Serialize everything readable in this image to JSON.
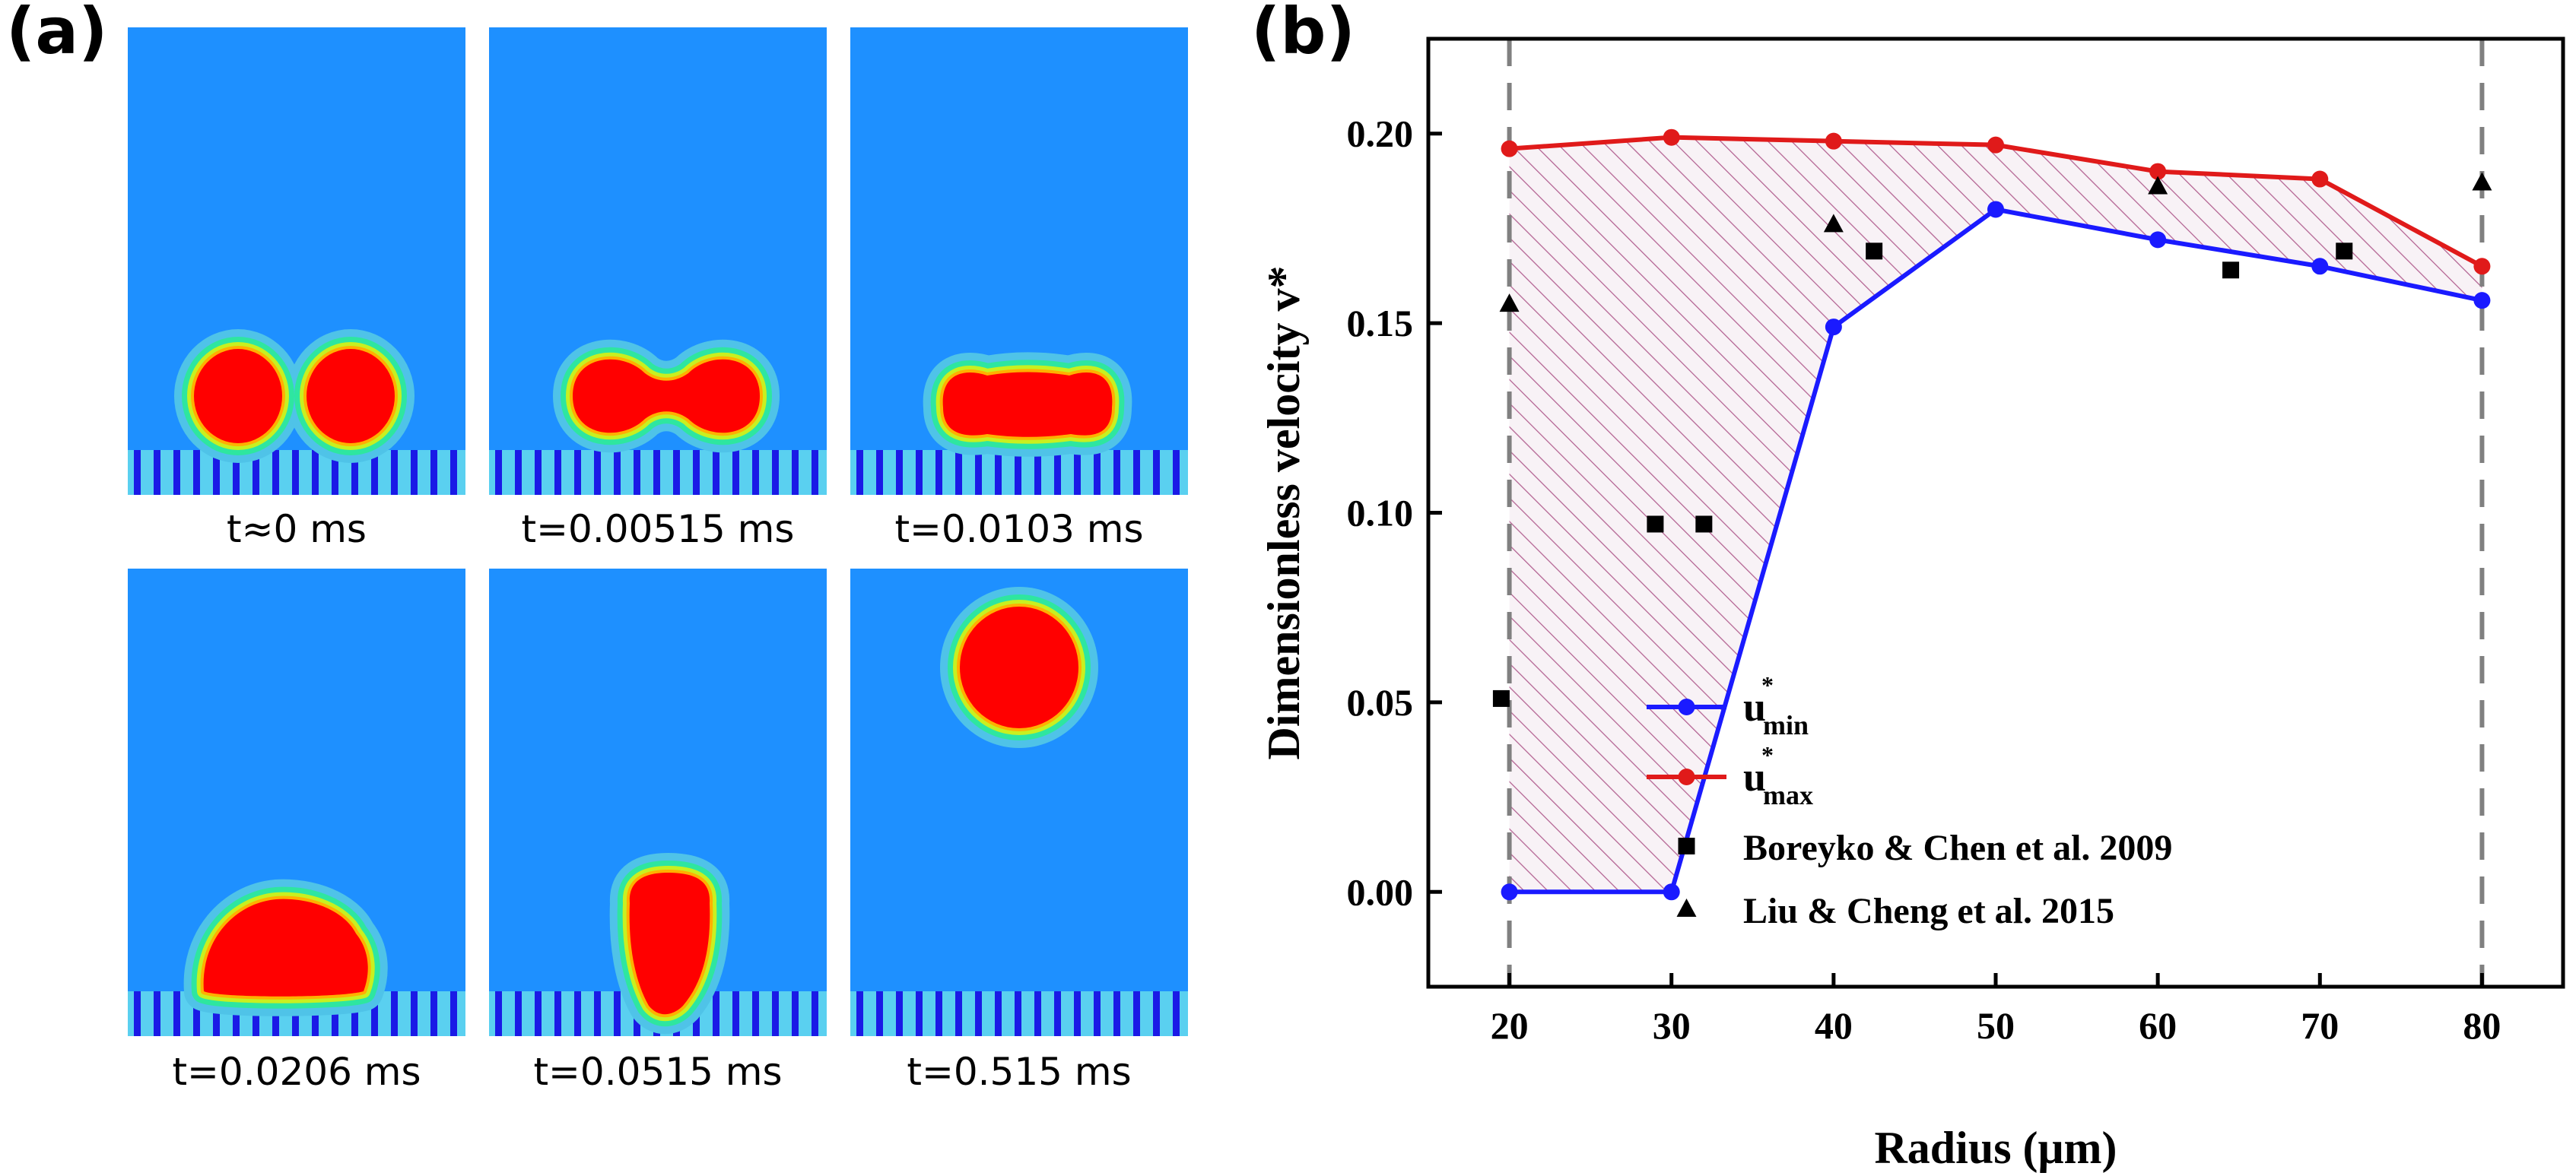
{
  "panel_a": {
    "label": "(a)",
    "frames": [
      {
        "caption": "t≈0 ms",
        "stage": "two-droplets"
      },
      {
        "caption": "t=0.00515 ms",
        "stage": "bridge"
      },
      {
        "caption": "t=0.0103 ms",
        "stage": "merged-flat"
      },
      {
        "caption": "t=0.0206 ms",
        "stage": "spreading"
      },
      {
        "caption": "t=0.0515 ms",
        "stage": "rebound"
      },
      {
        "caption": "t=0.515 ms",
        "stage": "jumped"
      }
    ]
  },
  "panel_b": {
    "label": "(b)"
  },
  "colors": {
    "background_fluid": "#1e90ff",
    "droplet_core": "#ff0000",
    "substrate": "#1a1ae6",
    "umin_line": "#1a1aff",
    "umax_line": "#e01a1a",
    "hatch": "#b05a8c"
  },
  "chart_data": {
    "type": "line",
    "xlabel": "Radius (μm)",
    "ylabel": "Dimensionless velocity v*",
    "xlim": [
      15,
      85
    ],
    "ylim": [
      -0.025,
      0.225
    ],
    "xticks": [
      20,
      30,
      40,
      50,
      60,
      70,
      80
    ],
    "yticks": [
      0.0,
      0.05,
      0.1,
      0.15,
      0.2
    ],
    "ytick_labels": [
      "0.00",
      "0.05",
      "0.10",
      "0.15",
      "0.20"
    ],
    "reference_lines_x": [
      20,
      80
    ],
    "shaded_region": "between u*min and u*max (hatched)",
    "series": [
      {
        "name": "u*min",
        "legend_main": "u",
        "legend_sup": "*",
        "legend_sub": "min",
        "marker": "circle",
        "x": [
          20,
          30,
          40,
          50,
          60,
          70,
          80
        ],
        "y": [
          0.0,
          0.0,
          0.149,
          0.18,
          0.172,
          0.165,
          0.156
        ]
      },
      {
        "name": "u*max",
        "legend_main": "u",
        "legend_sup": "*",
        "legend_sub": "max",
        "marker": "circle",
        "x": [
          20,
          30,
          40,
          50,
          60,
          70,
          80
        ],
        "y": [
          0.196,
          0.199,
          0.198,
          0.197,
          0.19,
          0.188,
          0.165
        ]
      },
      {
        "name": "Boreyko & Chen et al. 2009",
        "marker": "square",
        "x": [
          19.5,
          29,
          32,
          42.5,
          64.5,
          71.5
        ],
        "y": [
          0.051,
          0.097,
          0.097,
          0.169,
          0.164,
          0.169
        ]
      },
      {
        "name": "Liu & Cheng et al. 2015",
        "marker": "triangle",
        "x": [
          20,
          40,
          60,
          80
        ],
        "y": [
          0.155,
          0.176,
          0.186,
          0.187
        ]
      }
    ]
  }
}
